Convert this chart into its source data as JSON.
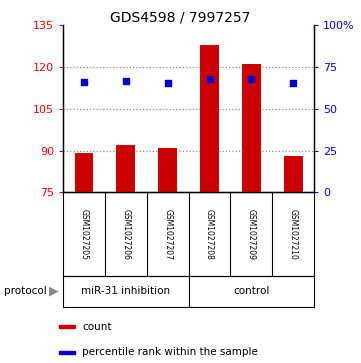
{
  "title": "GDS4598 / 7997257",
  "samples": [
    "GSM1027205",
    "GSM1027206",
    "GSM1027207",
    "GSM1027208",
    "GSM1027209",
    "GSM1027210"
  ],
  "counts": [
    89,
    92,
    91,
    128,
    121,
    88
  ],
  "percentile_ranks": [
    66,
    66.5,
    65.5,
    68,
    68,
    65.5
  ],
  "ylim_left": [
    75,
    135
  ],
  "yticks_left": [
    75,
    90,
    105,
    120,
    135
  ],
  "ylim_right": [
    0,
    100
  ],
  "yticks_right": [
    0,
    25,
    50,
    75,
    100
  ],
  "bar_color": "#cc0000",
  "dot_color": "#0000cc",
  "grid_lines": [
    90,
    105,
    120
  ],
  "protocol_label": "protocol",
  "miR_label": "miR-31 inhibition",
  "control_label": "control",
  "legend_count_label": "count",
  "legend_pct_label": "percentile rank within the sample",
  "grid_color": "#888888",
  "label_area_bg": "#c8c8c8",
  "protocol_bg": "#90ee90",
  "fig_width": 3.61,
  "fig_height": 3.63
}
